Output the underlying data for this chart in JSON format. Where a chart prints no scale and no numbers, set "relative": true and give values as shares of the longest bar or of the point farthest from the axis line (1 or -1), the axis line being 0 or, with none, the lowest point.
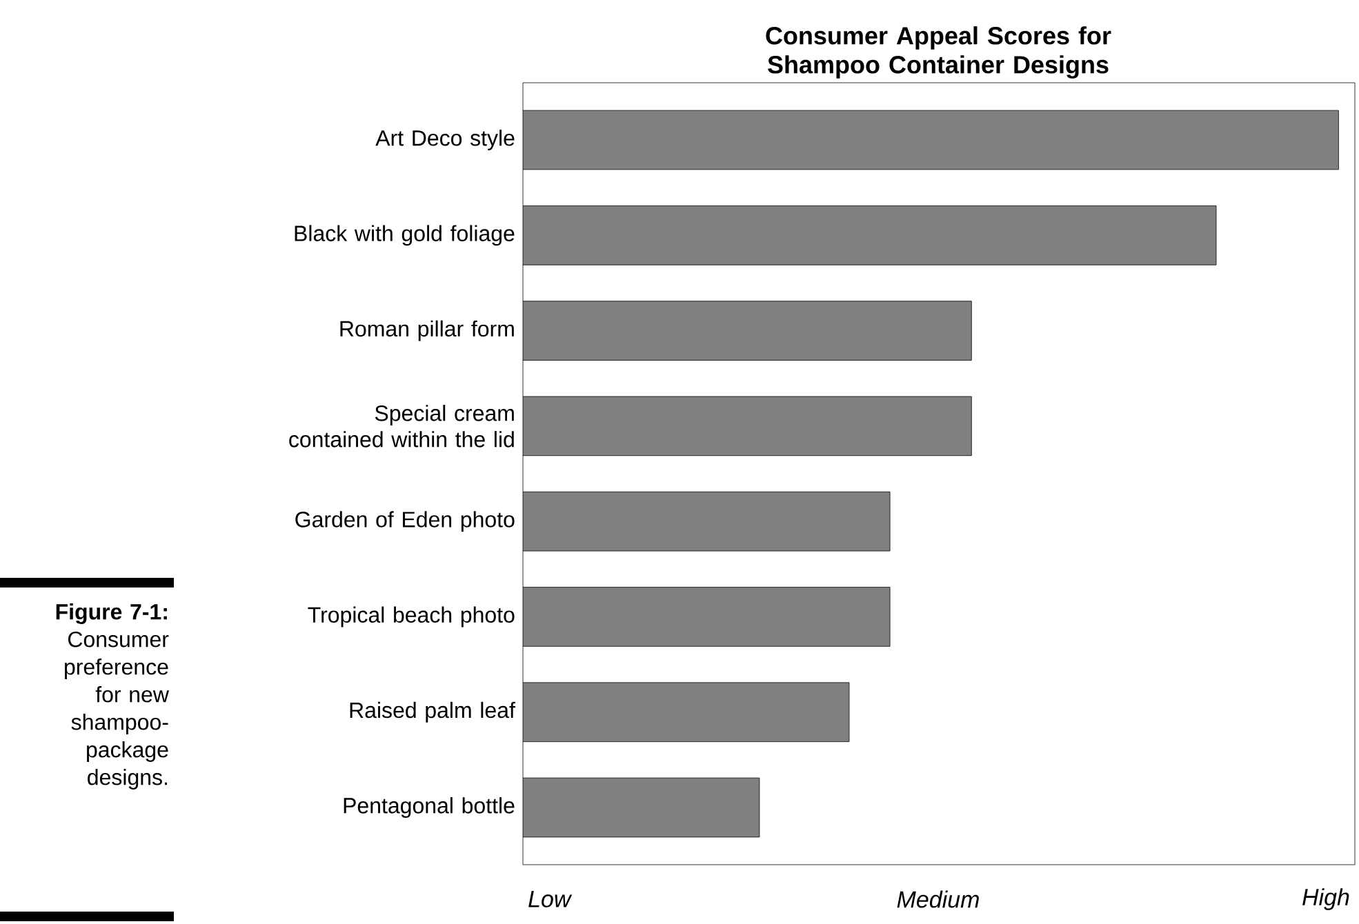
{
  "chart_data": {
    "type": "bar",
    "orientation": "horizontal",
    "relative": true,
    "title": "Consumer Appeal Scores for Shampoo Container Designs",
    "categories": [
      "Art Deco style",
      "Black with gold foliage",
      "Roman pillar form",
      "Special cream contained within the lid",
      "Garden of Eden photo",
      "Tropical beach photo",
      "Raised palm leaf",
      "Pentagonal bottle"
    ],
    "values": [
      1,
      0.85,
      0.55,
      0.55,
      0.45,
      0.45,
      0.4,
      0.29
    ],
    "color": "#808080",
    "annotations": [
      "Low",
      "Medium",
      "High",
      "**Figure 7-1:** Consumer preference for new shampoo-package designs."
    ]
  }
}
